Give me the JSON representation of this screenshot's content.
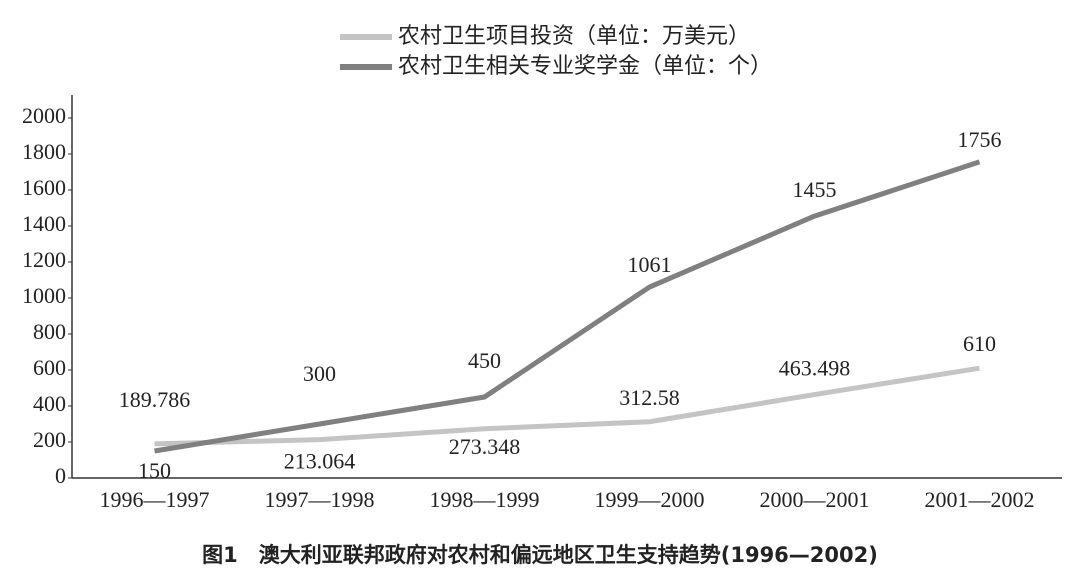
{
  "chart_data": {
    "type": "line",
    "title": "图1　澳大利亚联邦政府对农村和偏远地区卫生支持趋势(1996—2002)",
    "categories": [
      "1996—1997",
      "1997—1998",
      "1998—1999",
      "1999—2000",
      "2000—2001",
      "2001—2002"
    ],
    "series": [
      {
        "name": "农村卫生项目投资（单位：万美元）",
        "color": "#c4c4c4",
        "values": [
          189.786,
          213.064,
          273.348,
          312.58,
          463.498,
          610
        ]
      },
      {
        "name": "农村卫生相关专业奖学金（单位：个）",
        "color": "#808080",
        "values": [
          150,
          300,
          450,
          1061,
          1455,
          1756
        ]
      }
    ],
    "ylim": [
      0,
      2000
    ],
    "yticks": [
      0,
      200,
      400,
      600,
      800,
      1000,
      1200,
      1400,
      1600,
      1800,
      2000
    ],
    "grid": false
  }
}
